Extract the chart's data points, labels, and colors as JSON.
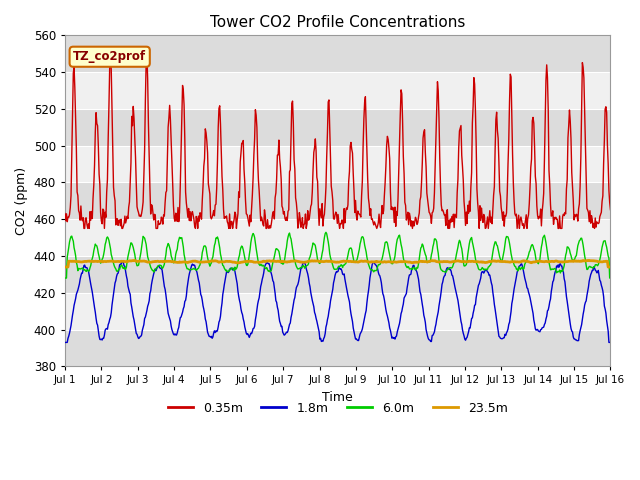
{
  "title": "Tower CO2 Profile Concentrations",
  "xlabel": "Time",
  "ylabel": "CO2 (ppm)",
  "ylim": [
    380,
    560
  ],
  "yticks": [
    380,
    400,
    420,
    440,
    460,
    480,
    500,
    520,
    540,
    560
  ],
  "xlim": [
    0,
    360
  ],
  "xtick_positions": [
    0,
    24,
    48,
    72,
    96,
    120,
    144,
    168,
    192,
    216,
    240,
    264,
    288,
    312,
    336,
    360
  ],
  "xtick_labels": [
    "Jul 1",
    "Jul 2",
    "Jul 3",
    "Jul 4",
    "Jul 5",
    "Jul 6",
    "Jul 7",
    "Jul 8",
    "Jul 9",
    "Jul 10",
    "Jul 11",
    "Jul 12",
    "Jul 13",
    "Jul 14",
    "Jul 15",
    "Jul 16"
  ],
  "legend_labels": [
    "0.35m",
    "1.8m",
    "6.0m",
    "23.5m"
  ],
  "line_colors": [
    "#cc0000",
    "#0000cc",
    "#00cc00",
    "#dd9900"
  ],
  "annotation_text": "TZ_co2prof",
  "annotation_bg": "#ffffcc",
  "annotation_border": "#cc6600",
  "annotation_text_color": "#880000",
  "bg_color": "#ffffff",
  "plot_bg_light": "#f0f0f0",
  "plot_bg_dark": "#dcdcdc",
  "orange_line_value": 437.0,
  "n_points": 720,
  "hours": 360
}
